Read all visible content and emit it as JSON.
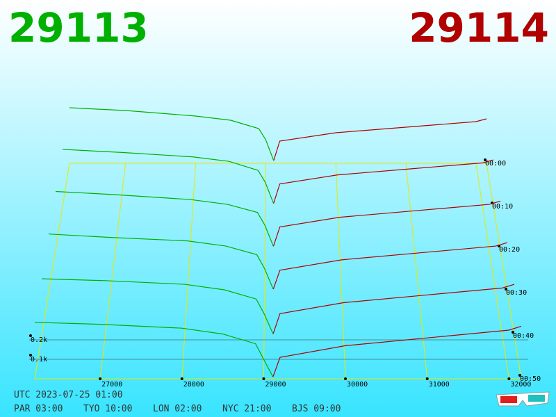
{
  "chart_data": {
    "type": "depth3d",
    "bid_price": 29113,
    "ask_price": 29114,
    "bid_color": "#00b000",
    "ask_color": "#b00000",
    "grid_color": "#e8e800",
    "xlim": [
      26200,
      32150
    ],
    "xticks": [
      27000,
      28000,
      29000,
      30000,
      31000,
      32000
    ],
    "zticks": [
      {
        "value": 0.1,
        "label": "0.1k"
      },
      {
        "value": 0.2,
        "label": "0.2k"
      }
    ],
    "bid_prices": [
      26200,
      27000,
      28000,
      28500,
      28900,
      29000,
      29113
    ],
    "ask_prices": [
      29114,
      29200,
      30000,
      31000,
      32000,
      32150
    ],
    "slices": [
      {
        "time": "00:00",
        "bids": [
          0.4,
          0.38,
          0.34,
          0.31,
          0.25,
          0.17,
          0.02
        ],
        "asks": [
          0.02,
          0.16,
          0.22,
          0.26,
          0.3,
          0.32
        ]
      },
      {
        "time": "00:10",
        "bids": [
          0.38,
          0.36,
          0.33,
          0.3,
          0.24,
          0.16,
          0.02
        ],
        "asks": [
          0.02,
          0.15,
          0.21,
          0.25,
          0.29,
          0.31
        ]
      },
      {
        "time": "00:20",
        "bids": [
          0.36,
          0.34,
          0.31,
          0.28,
          0.23,
          0.15,
          0.02
        ],
        "asks": [
          0.02,
          0.14,
          0.2,
          0.24,
          0.28,
          0.3
        ]
      },
      {
        "time": "00:30",
        "bids": [
          0.34,
          0.32,
          0.3,
          0.27,
          0.22,
          0.14,
          0.02
        ],
        "asks": [
          0.02,
          0.13,
          0.19,
          0.23,
          0.27,
          0.29
        ]
      },
      {
        "time": "00:40",
        "bids": [
          0.31,
          0.3,
          0.28,
          0.25,
          0.2,
          0.12,
          0.01
        ],
        "asks": [
          0.01,
          0.12,
          0.18,
          0.22,
          0.26,
          0.28
        ]
      },
      {
        "time": "00:50",
        "bids": [
          0.29,
          0.28,
          0.26,
          0.23,
          0.18,
          0.1,
          0.01
        ],
        "asks": [
          0.01,
          0.11,
          0.17,
          0.21,
          0.25,
          0.27
        ]
      }
    ],
    "timestamp": "UTC 2023-07-25 01:00",
    "clocks": [
      "PAR 03:00",
      "TYO 10:00",
      "LON 02:00",
      "NYC 21:00",
      "BJS 09:00"
    ]
  }
}
